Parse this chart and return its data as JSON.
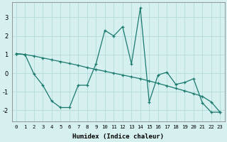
{
  "xlabel": "Humidex (Indice chaleur)",
  "bg_color": "#d6f0f0",
  "grid_color": "#b8dede",
  "line_color": "#1a7a6e",
  "xlim": [
    -0.5,
    23.5
  ],
  "ylim": [
    -2.6,
    3.8
  ],
  "yticks": [
    -2,
    -1,
    0,
    1,
    2,
    3
  ],
  "xticks": [
    0,
    1,
    2,
    3,
    4,
    5,
    6,
    7,
    8,
    9,
    10,
    11,
    12,
    13,
    14,
    15,
    16,
    17,
    18,
    19,
    20,
    21,
    22,
    23
  ],
  "line1_x": [
    0,
    1,
    2,
    3,
    4,
    5,
    6,
    7,
    8,
    9,
    10,
    11,
    12,
    13,
    14,
    15,
    16,
    17,
    18,
    19,
    20,
    21,
    22,
    23
  ],
  "line1_y": [
    1.05,
    1.0,
    0.92,
    0.82,
    0.72,
    0.62,
    0.52,
    0.42,
    0.3,
    0.2,
    0.1,
    0.0,
    -0.1,
    -0.2,
    -0.3,
    -0.42,
    -0.55,
    -0.68,
    -0.82,
    -0.95,
    -1.1,
    -1.25,
    -1.55,
    -2.1
  ],
  "line2_x": [
    0,
    1,
    2,
    3,
    4,
    5,
    6,
    7,
    8,
    9,
    10,
    11,
    12,
    13,
    14,
    15,
    16,
    17,
    18,
    19,
    20,
    21,
    22,
    23
  ],
  "line2_y": [
    1.05,
    1.0,
    -0.05,
    -0.65,
    -1.5,
    -1.85,
    -1.85,
    -0.65,
    -0.65,
    0.5,
    2.3,
    2.0,
    2.5,
    0.5,
    3.5,
    -1.55,
    -0.1,
    0.05,
    -0.6,
    -0.5,
    -0.3,
    -1.6,
    -2.1,
    -2.1
  ]
}
